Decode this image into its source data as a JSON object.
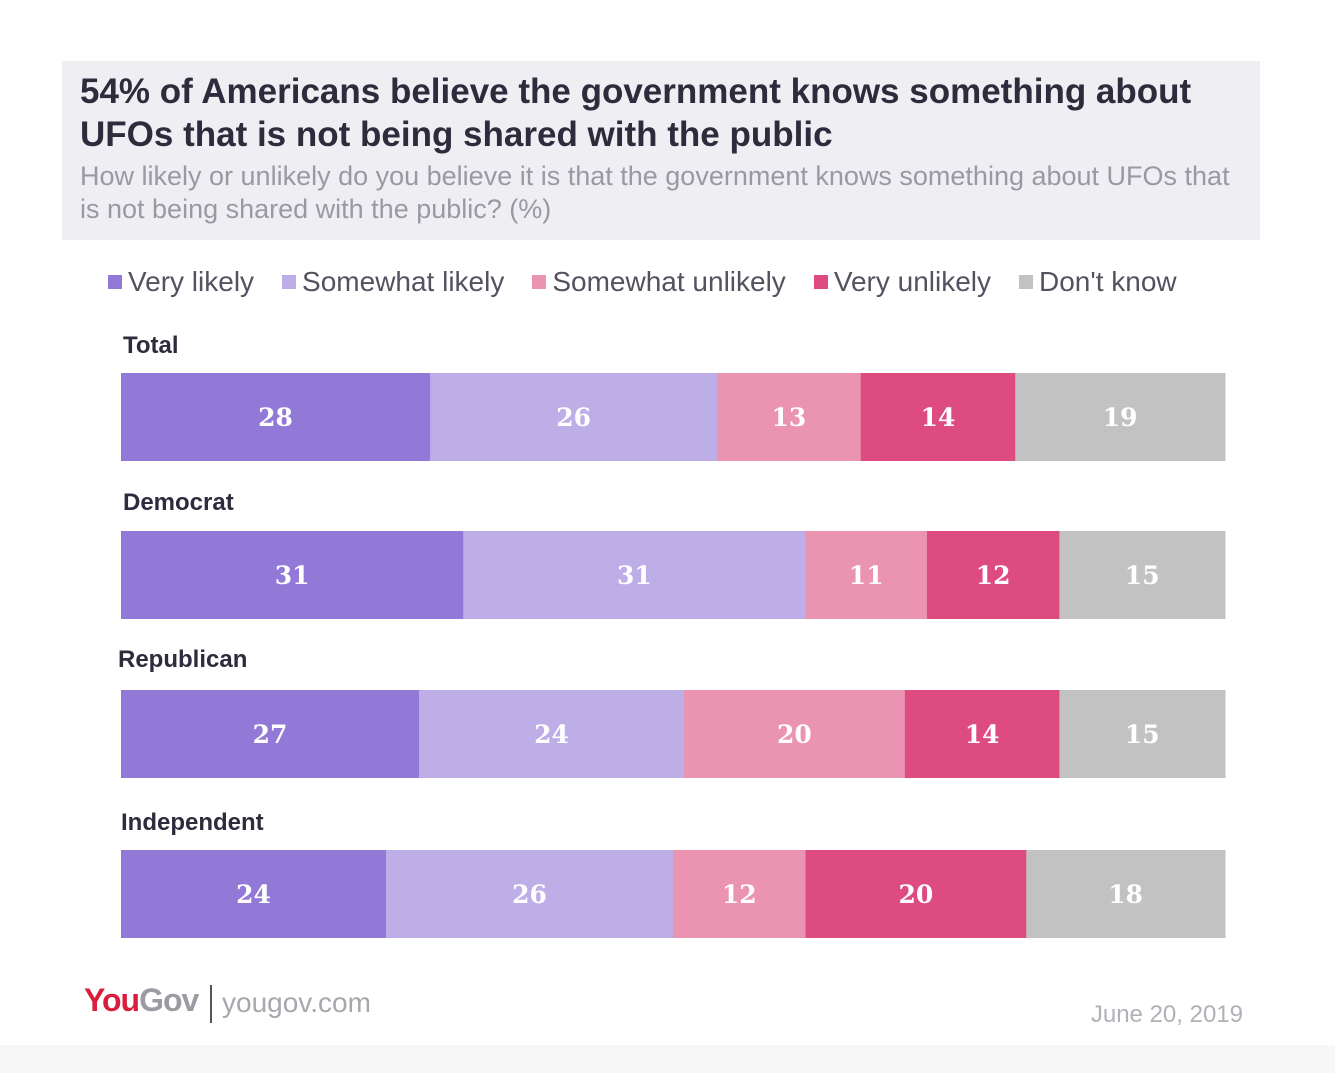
{
  "title": "54% of Americans believe the government knows something about UFOs that is not being shared with the public",
  "subtitle": "How likely or unlikely do you believe it is that the government knows something about UFOs that is not being shared with the public? (%)",
  "legend": [
    {
      "label": "Very likely",
      "color": "#9279d8"
    },
    {
      "label": "Somewhat likely",
      "color": "#bdaee8"
    },
    {
      "label": "Somewhat unlikely",
      "color": "#ea94b2"
    },
    {
      "label": "Very unlikely",
      "color": "#de4b81"
    },
    {
      "label": "Don't know",
      "color": "#c2c2c2"
    }
  ],
  "chart_data": {
    "type": "bar",
    "orientation": "horizontal-stacked",
    "title": "54% of Americans believe the government knows something about UFOs that is not being shared with the public",
    "subtitle": "How likely or unlikely do you believe it is that the government knows something about UFOs that is not being shared with the public? (%)",
    "categories": [
      "Total",
      "Democrat",
      "Republican",
      "Independent"
    ],
    "series": [
      {
        "name": "Very likely",
        "color": "#9279d8",
        "values": [
          28,
          31,
          27,
          24
        ]
      },
      {
        "name": "Somewhat likely",
        "color": "#bdaee8",
        "values": [
          26,
          31,
          24,
          26
        ]
      },
      {
        "name": "Somewhat unlikely",
        "color": "#ea94b2",
        "values": [
          13,
          11,
          20,
          12
        ]
      },
      {
        "name": "Very unlikely",
        "color": "#de4b81",
        "values": [
          14,
          12,
          14,
          20
        ]
      },
      {
        "name": "Don't know",
        "color": "#c2c2c2",
        "values": [
          19,
          15,
          15,
          18
        ]
      }
    ],
    "legend_position": "top"
  },
  "footer": {
    "logo_you": "You",
    "logo_gov": "Gov",
    "url": "yougov.com",
    "date": "June 20, 2019"
  }
}
